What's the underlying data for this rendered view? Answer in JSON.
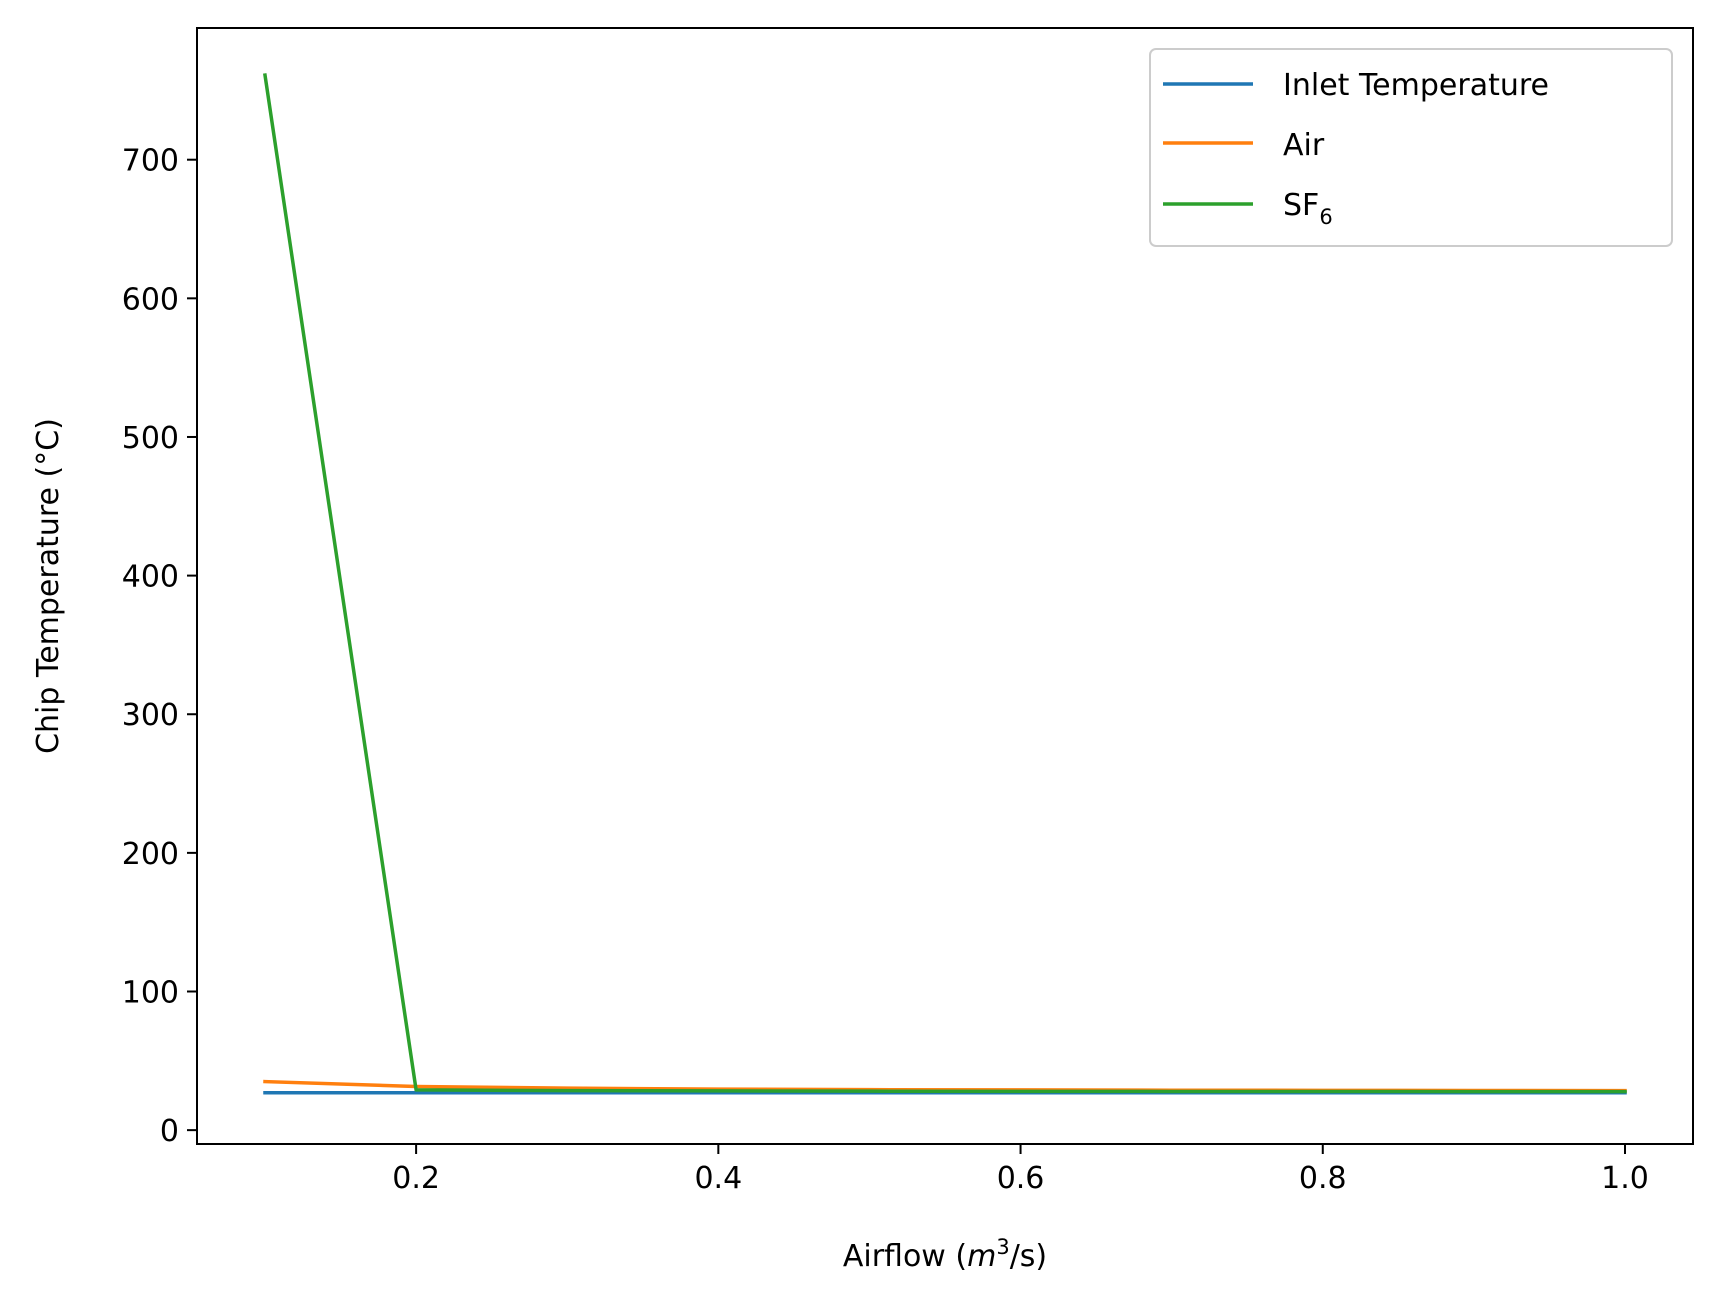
{
  "chart_data": {
    "type": "line",
    "xlabel_main": "Airflow (",
    "xlabel_var": "m",
    "xlabel_sup": "3",
    "xlabel_tail": "/s)",
    "ylabel": "Chip Temperature (°C)",
    "xlim": [
      0.055,
      1.045
    ],
    "ylim": [
      -10,
      795
    ],
    "xticks": [
      0.2,
      0.4,
      0.6,
      0.8,
      1.0
    ],
    "xtick_labels": [
      "0.2",
      "0.4",
      "0.6",
      "0.8",
      "1.0"
    ],
    "yticks": [
      0,
      100,
      200,
      300,
      400,
      500,
      600,
      700
    ],
    "ytick_labels": [
      "0",
      "100",
      "200",
      "300",
      "400",
      "500",
      "600",
      "700"
    ],
    "grid": false,
    "legend_position": "top-right",
    "x": [
      0.1,
      0.2,
      0.3,
      0.4,
      0.5,
      0.6,
      0.7,
      0.8,
      0.9,
      1.0
    ],
    "series": [
      {
        "name": "Inlet Temperature",
        "color": "#1f77b4",
        "values": [
          27,
          27,
          27,
          27,
          27,
          27,
          27,
          27,
          27,
          27
        ]
      },
      {
        "name": "Air",
        "color": "#ff7f0e",
        "values": [
          35,
          31.5,
          30.3,
          29.6,
          29.2,
          29.0,
          28.8,
          28.7,
          28.6,
          28.5
        ]
      },
      {
        "name": "SF",
        "name_sub": "6",
        "color": "#2ca02c",
        "values": [
          761,
          29,
          28.5,
          28.3,
          28.1,
          28.0,
          27.9,
          27.9,
          27.8,
          27.8
        ]
      }
    ]
  }
}
